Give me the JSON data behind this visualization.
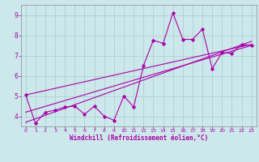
{
  "xlabel": "Windchill (Refroidissement éolien,°C)",
  "bg_color": "#cce8ea",
  "line_color": "#aa00aa",
  "grid_color": "#aacccc",
  "xlim": [
    -0.5,
    23.5
  ],
  "ylim": [
    3.5,
    9.5
  ],
  "xticks": [
    0,
    1,
    2,
    3,
    4,
    5,
    6,
    7,
    8,
    9,
    10,
    11,
    12,
    13,
    14,
    15,
    16,
    17,
    18,
    19,
    20,
    21,
    22,
    23
  ],
  "yticks": [
    4,
    5,
    6,
    7,
    8,
    9
  ],
  "series1_x": [
    0,
    1,
    2,
    3,
    4,
    5,
    6,
    7,
    8,
    9,
    10,
    11,
    12,
    13,
    14,
    15,
    16,
    17,
    18,
    19,
    20,
    21,
    22,
    23
  ],
  "series1_y": [
    5.05,
    3.65,
    4.2,
    4.3,
    4.45,
    4.5,
    4.1,
    4.5,
    4.0,
    3.8,
    5.0,
    4.45,
    6.5,
    7.75,
    7.6,
    9.1,
    7.8,
    7.8,
    8.3,
    6.35,
    7.15,
    7.1,
    7.55,
    7.5
  ],
  "series2_x": [
    0,
    23
  ],
  "series2_y": [
    3.7,
    7.7
  ],
  "series3_x": [
    0,
    23
  ],
  "series3_y": [
    4.2,
    7.5
  ],
  "series4_x": [
    0,
    23
  ],
  "series4_y": [
    5.05,
    7.55
  ]
}
